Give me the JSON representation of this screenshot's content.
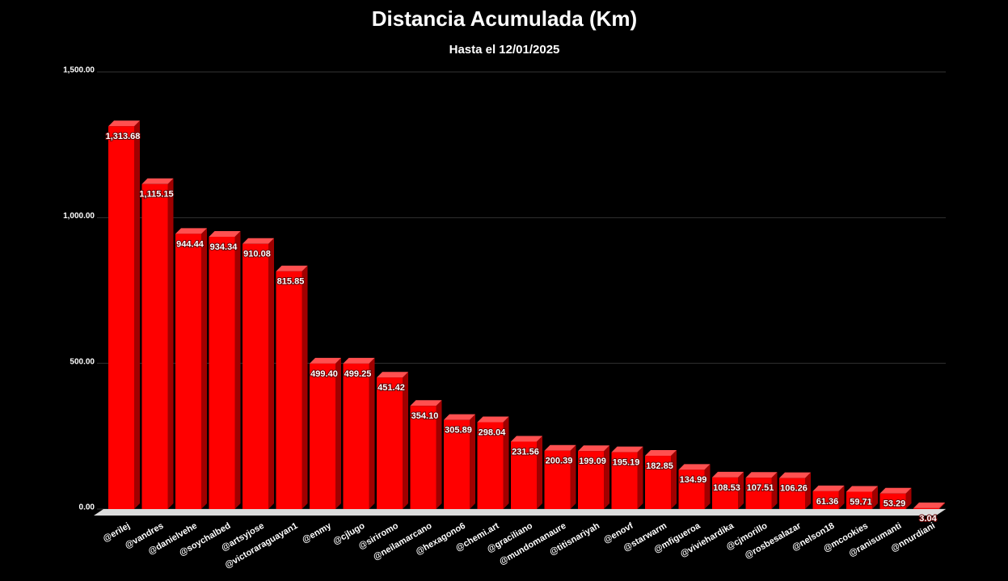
{
  "chart_data": {
    "type": "bar",
    "title": "Distancia Acumulada (Km)",
    "subtitle": "Hasta el 12/01/2025",
    "categories": [
      "@erilej",
      "@vandres",
      "@danielvehe",
      "@soychalbed",
      "@artsyjose",
      "@victoraraguayan1",
      "@enmy",
      "@cjlugo",
      "@siriromo",
      "@neilamarcano",
      "@hexagono6",
      "@chemi.art",
      "@graciliano",
      "@mundomanaure",
      "@titisnariyah",
      "@enovf",
      "@starwarm",
      "@mfigueroa",
      "@viviehardika",
      "@cjmorillo",
      "@rosbesalazar",
      "@nelson18",
      "@mcookies",
      "@ranisumanti",
      "@nnurdiani"
    ],
    "values": [
      1313.68,
      1115.15,
      944.44,
      934.34,
      910.08,
      815.85,
      499.4,
      499.25,
      451.42,
      354.1,
      305.89,
      298.04,
      231.56,
      200.39,
      199.09,
      195.19,
      182.85,
      134.99,
      108.53,
      107.51,
      106.26,
      61.36,
      59.71,
      53.29,
      3.04
    ],
    "value_labels": [
      "1,313.68",
      "1,115.15",
      "944.44",
      "934.34",
      "910.08",
      "815.85",
      "499.40",
      "499.25",
      "451.42",
      "354.10",
      "305.89",
      "298.04",
      "231.56",
      "200.39",
      "199.09",
      "195.19",
      "182.85",
      "134.99",
      "108.53",
      "107.51",
      "106.26",
      "61.36",
      "59.71",
      "53.29",
      "3.04"
    ],
    "color": "#ff0000",
    "ylim": [
      0,
      1500
    ],
    "yticks": [
      {
        "value": 0,
        "label": "0.00"
      },
      {
        "value": 500,
        "label": "500.00"
      },
      {
        "value": 1000,
        "label": "1,000.00"
      },
      {
        "value": 1500,
        "label": "1,500.00"
      }
    ],
    "grid": true
  }
}
